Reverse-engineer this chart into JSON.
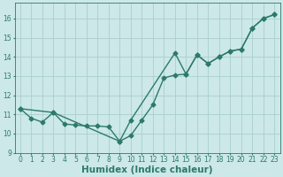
{
  "xlabel": "Humidex (Indice chaleur)",
  "xlim": [
    -0.5,
    23.5
  ],
  "ylim": [
    9,
    16.8
  ],
  "yticks": [
    9,
    10,
    11,
    12,
    13,
    14,
    15,
    16
  ],
  "xticks": [
    0,
    1,
    2,
    3,
    4,
    5,
    6,
    7,
    8,
    9,
    10,
    11,
    12,
    13,
    14,
    15,
    16,
    17,
    18,
    19,
    20,
    21,
    22,
    23
  ],
  "line1_x": [
    0,
    1,
    2,
    3,
    4,
    5,
    6,
    7,
    8,
    9,
    10,
    11,
    12,
    13,
    14,
    15,
    16,
    17,
    18,
    19,
    20,
    21,
    22,
    23
  ],
  "line1_y": [
    11.3,
    10.8,
    10.6,
    11.1,
    10.5,
    10.45,
    10.4,
    10.4,
    10.35,
    9.6,
    9.9,
    10.7,
    11.5,
    12.9,
    13.05,
    13.1,
    14.1,
    13.65,
    14.0,
    14.3,
    14.4,
    15.5,
    16.0,
    16.2
  ],
  "line2_x": [
    0,
    3,
    9,
    10,
    14,
    15,
    16,
    17,
    18,
    19,
    20,
    21,
    22,
    23
  ],
  "line2_y": [
    11.3,
    11.1,
    9.6,
    10.7,
    14.2,
    13.1,
    14.1,
    13.65,
    14.0,
    14.3,
    14.4,
    15.5,
    16.0,
    16.2
  ],
  "line_color": "#2d7a6a",
  "bg_color": "#cce8e8",
  "grid_color": "#aacece",
  "marker": "D",
  "marker_size": 2.5,
  "line_width": 1.0,
  "tick_fontsize": 5.5,
  "xlabel_fontsize": 7.5
}
